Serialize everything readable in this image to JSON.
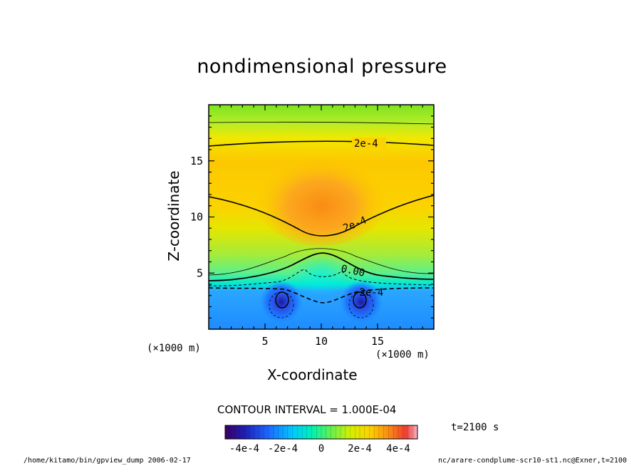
{
  "chart_data": {
    "type": "heatmap",
    "title": "nondimensional pressure",
    "xlabel": "X-coordinate",
    "ylabel": "Z-coordinate",
    "x_unit": "(×1000 m)",
    "y_unit": "(×1000 m)",
    "xlim": [
      0,
      20
    ],
    "ylim": [
      0,
      20
    ],
    "x_ticks": [
      5,
      10,
      15
    ],
    "y_ticks": [
      5,
      10,
      15
    ],
    "contour_interval_text": "CONTOUR INTERVAL = 1.000E-04",
    "contour_labels": [
      "2e-4",
      "2e-4",
      "0.00",
      "-2e-4"
    ],
    "colorbar": {
      "range": [
        -0.0005,
        0.0005
      ],
      "tick_labels": [
        "-4e-4",
        "-2e-4",
        "0",
        "2e-4",
        "4e-4"
      ],
      "tick_values": [
        -0.0004,
        -0.0002,
        0,
        0.0002,
        0.0004
      ]
    },
    "field_summary": {
      "max_region": {
        "x": 10,
        "z": 11,
        "value": 0.00035
      },
      "min_regions": [
        {
          "x": 6.5,
          "z": 2.5,
          "value": -0.0004
        },
        {
          "x": 13.5,
          "z": 2.5,
          "value": -0.0004
        }
      ],
      "zero_contour_height_edges": 4.2,
      "zero_contour_height_center": 7.0
    },
    "grid": false,
    "legend": "colorbar-bottom"
  },
  "time_label": "t=2100 s",
  "footer_left": "/home/kitamo/bin/gpview_dump  2006-02-17",
  "footer_right": "nc/arare-condplume-scr10-st1.nc@Exner,t=2100"
}
